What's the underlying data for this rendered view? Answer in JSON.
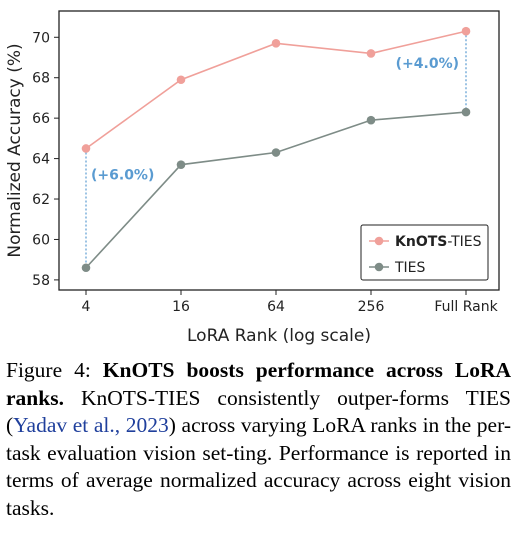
{
  "chart_data": {
    "type": "line",
    "xlabel": "LoRA Rank (log scale)",
    "ylabel": "Normalized Accuracy (%)",
    "categories": [
      "4",
      "16",
      "64",
      "256",
      "Full Rank"
    ],
    "ylim": [
      57.5,
      71.3
    ],
    "yticks": [
      58,
      60,
      62,
      64,
      66,
      68,
      70
    ],
    "grid": false,
    "legend_position": "lower-right",
    "series": [
      {
        "name_bold": "KnOTS",
        "name_rest": "-TIES",
        "color": "#f0a09a",
        "values": [
          64.5,
          67.9,
          69.7,
          69.2,
          70.3
        ]
      },
      {
        "name": "TIES",
        "color": "#7e8c87",
        "values": [
          58.6,
          63.7,
          64.3,
          65.9,
          66.3
        ]
      }
    ],
    "annotations": [
      {
        "text": "(+6.0%)",
        "category_index": 0
      },
      {
        "text": "(+4.0%)",
        "category_index": 4
      }
    ],
    "annotation_color": "#5a9bd1"
  },
  "caption": {
    "prefix": "Figure 4: ",
    "bold": "KnOTS boosts performance across LoRA ranks.",
    "text_before_cite": " KnOTS-TIES consistently outper-forms TIES (",
    "cite": "Yadav et al., 2023",
    "text_after_cite": ") across varying LoRA ranks in the per-task evaluation vision set-ting. Performance is reported in terms of average normalized accuracy across eight vision tasks."
  }
}
